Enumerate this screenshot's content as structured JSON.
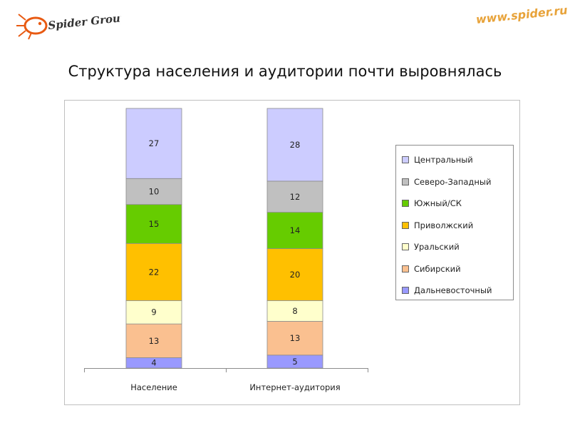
{
  "header": {
    "logo_text": "Spider Group",
    "url_text": "www.spider.ru"
  },
  "title": "Структура населения и аудитории почти выровнялась",
  "chart_data": {
    "type": "bar",
    "stacked": true,
    "categories": [
      "Население",
      "Интернет-аудитория"
    ],
    "series": [
      {
        "name": "Дальневосточный",
        "values": [
          4,
          5
        ],
        "color": "#9999ff"
      },
      {
        "name": "Сибирский",
        "values": [
          13,
          13
        ],
        "color": "#fac090"
      },
      {
        "name": "Уральский",
        "values": [
          9,
          8
        ],
        "color": "#ffffcc"
      },
      {
        "name": "Приволжский",
        "values": [
          22,
          20
        ],
        "color": "#ffc000"
      },
      {
        "name": "Южный/СК",
        "values": [
          15,
          14
        ],
        "color": "#66cc00"
      },
      {
        "name": "Северо-Западный",
        "values": [
          10,
          12
        ],
        "color": "#c0c0c0"
      },
      {
        "name": "Центральный",
        "values": [
          27,
          28
        ],
        "color": "#ccccff"
      }
    ],
    "ylim": [
      0,
      100
    ],
    "grid": false,
    "legend_position": "right",
    "legend_order": [
      "Центральный",
      "Северо-Западный",
      "Южный/СК",
      "Приволжский",
      "Уральский",
      "Сибирский",
      "Дальневосточный"
    ]
  }
}
